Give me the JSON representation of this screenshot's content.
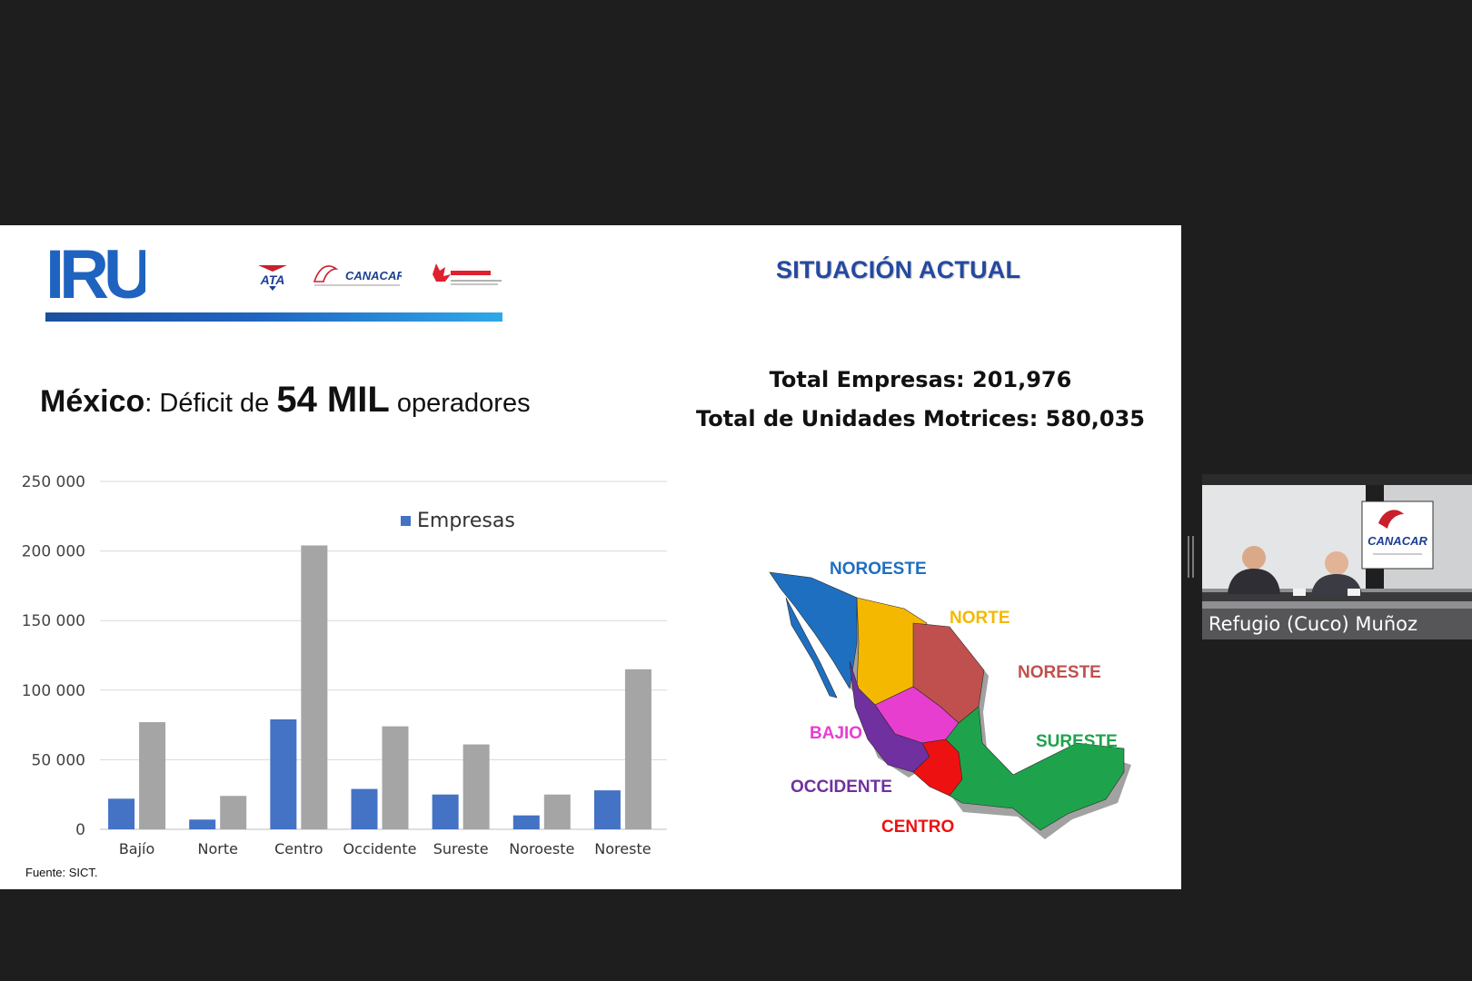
{
  "slide": {
    "logo_text": "IRU",
    "partner_logos": [
      "ATA",
      "CANACAR"
    ],
    "title": "SITUACIÓN ACTUAL",
    "headline": {
      "part1": "México",
      "part2": ": Déficit de ",
      "part3": "54 MIL",
      "part4": " operadores"
    },
    "total_empresas": "Total Empresas: 201,976",
    "total_unidades": "Total de Unidades Motrices: 580,035",
    "source": "Fuente: SICT.",
    "colors": {
      "title_blue": "#2449a0",
      "bar_blue": "#4472c4",
      "bar_gray": "#a5a5a5"
    }
  },
  "chart_data": {
    "type": "bar",
    "categories": [
      "Bajío",
      "Norte",
      "Centro",
      "Occidente",
      "Sureste",
      "Noroeste",
      "Noreste"
    ],
    "series": [
      {
        "name": "Empresas",
        "color": "#4472c4",
        "values": [
          22000,
          7000,
          79000,
          29000,
          25000,
          10000,
          28000
        ]
      },
      {
        "color": "#a5a5a5",
        "values": [
          77000,
          24000,
          204000,
          74000,
          61000,
          25000,
          115000
        ]
      }
    ],
    "ylim": [
      0,
      250000
    ],
    "yticks": [
      "0",
      "50 000",
      "100 000",
      "150 000",
      "200 000",
      "250 000"
    ],
    "grid": true,
    "legend": "top-center"
  },
  "map": {
    "regions": [
      {
        "name": "NOROESTE",
        "color": "#1f6fc1"
      },
      {
        "name": "NORTE",
        "color": "#f5b800"
      },
      {
        "name": "NORESTE",
        "color": "#c0504d"
      },
      {
        "name": "SURESTE",
        "color": "#1ea34c"
      },
      {
        "name": "BAJIO",
        "color": "#e83ed0"
      },
      {
        "name": "OCCIDENTE",
        "color": "#7030a0"
      },
      {
        "name": "CENTRO",
        "color": "#ee1111"
      }
    ]
  },
  "video": {
    "participant_name": "Refugio (Cuco) Muñoz",
    "backdrop_logo": "CANACAR"
  }
}
